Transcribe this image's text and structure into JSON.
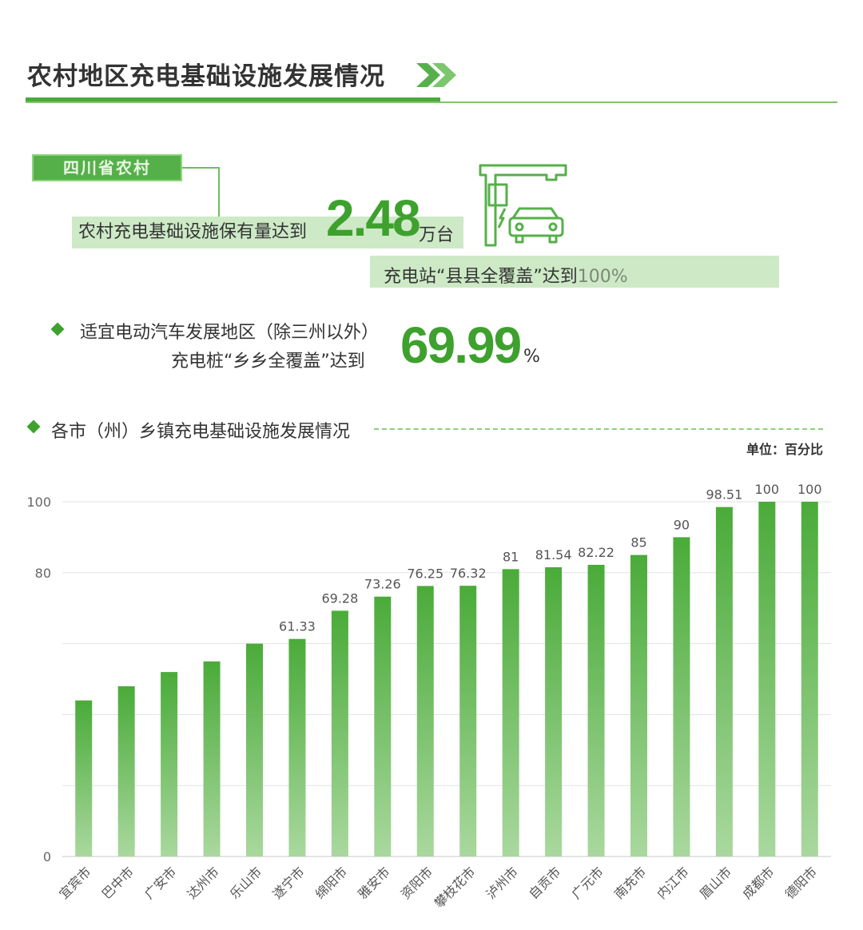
{
  "header": {
    "title": "农村地区充电基础设施发展情况"
  },
  "highlight": {
    "tag": "四川省农村",
    "stat1_text": "农村充电基础设施保有量达到",
    "stat1_value": "2.48",
    "stat1_unit": "万台",
    "stat2_text": "充电站“县县全覆盖”达到",
    "stat2_value": "100%",
    "stat3_line1": "适宜电动汽车发展地区（除三州以外）",
    "stat3_line2": "充电桩“乡乡全覆盖”达到",
    "stat3_value": "69.99",
    "stat3_unit": "%"
  },
  "section": {
    "title": "各市（州）乡镇充电基础设施发展情况",
    "unit": "单位：百分比"
  },
  "colors": {
    "accent": "#3ea12e",
    "bar_top": "#4aab39",
    "bar_bottom": "#a9d89e"
  },
  "chart_data": {
    "type": "bar",
    "categories": [
      "宜宾市",
      "巴中市",
      "广安市",
      "达州市",
      "乐山市",
      "遂宁市",
      "绵阳市",
      "雅安市",
      "资阳市",
      "攀枝花市",
      "泸州市",
      "自贡市",
      "广元市",
      "南充市",
      "内江市",
      "眉山市",
      "成都市",
      "德阳市"
    ],
    "values": [
      44,
      48,
      52,
      55,
      60,
      61.33,
      69.28,
      73.26,
      76.25,
      76.32,
      81,
      81.54,
      82.22,
      85,
      90,
      98.51,
      100,
      100
    ],
    "labels": [
      "",
      "",
      "",
      "",
      "",
      "61.33",
      "69.28",
      "73.26",
      "76.25",
      "76.32",
      "81",
      "81.54",
      "82.22",
      "85",
      "90",
      "98.51",
      "100",
      "100"
    ],
    "yticks": [
      "100",
      "80",
      "0"
    ],
    "ylim": [
      0,
      100
    ],
    "grid": true
  }
}
